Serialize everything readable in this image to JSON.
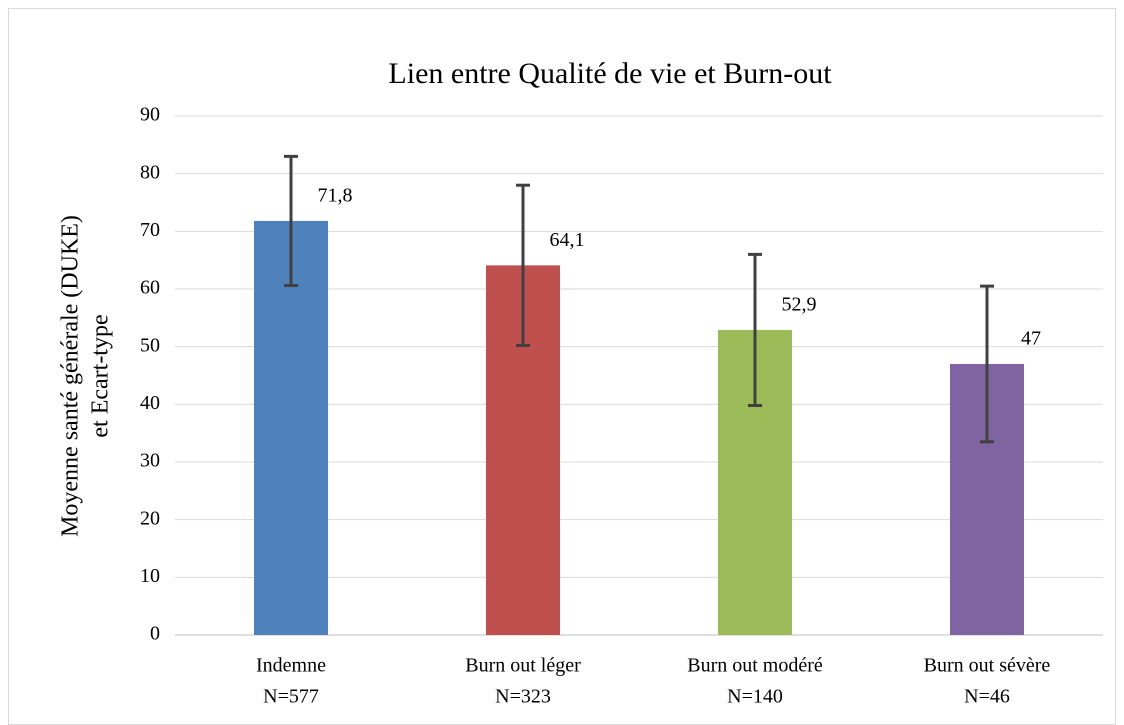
{
  "chart_data": {
    "type": "bar",
    "title": "Lien entre Qualité de vie et Burn-out",
    "y_label": [
      "Moyenne santé générale (DUKE)",
      "et Ecart-type"
    ],
    "categories": [
      [
        "Indemne",
        "N=577"
      ],
      [
        "Burn out léger",
        "N=323"
      ],
      [
        "Burn out modéré",
        "N=140"
      ],
      [
        "Burn out sévère",
        "N=46"
      ]
    ],
    "values": [
      71.8,
      64.1,
      52.9,
      47
    ],
    "value_labels": [
      "71,8",
      "64,1",
      "52,9",
      "47"
    ],
    "errors": [
      11.2,
      13.9,
      13.1,
      13.5
    ],
    "colors": [
      "#4f81bd",
      "#c0504d",
      "#9bbb59",
      "#8064a2"
    ],
    "error_color": "#404040",
    "ylim": [
      0,
      90
    ],
    "yticks": [
      0,
      10,
      20,
      30,
      40,
      50,
      60,
      70,
      80,
      90
    ],
    "grid": true
  }
}
